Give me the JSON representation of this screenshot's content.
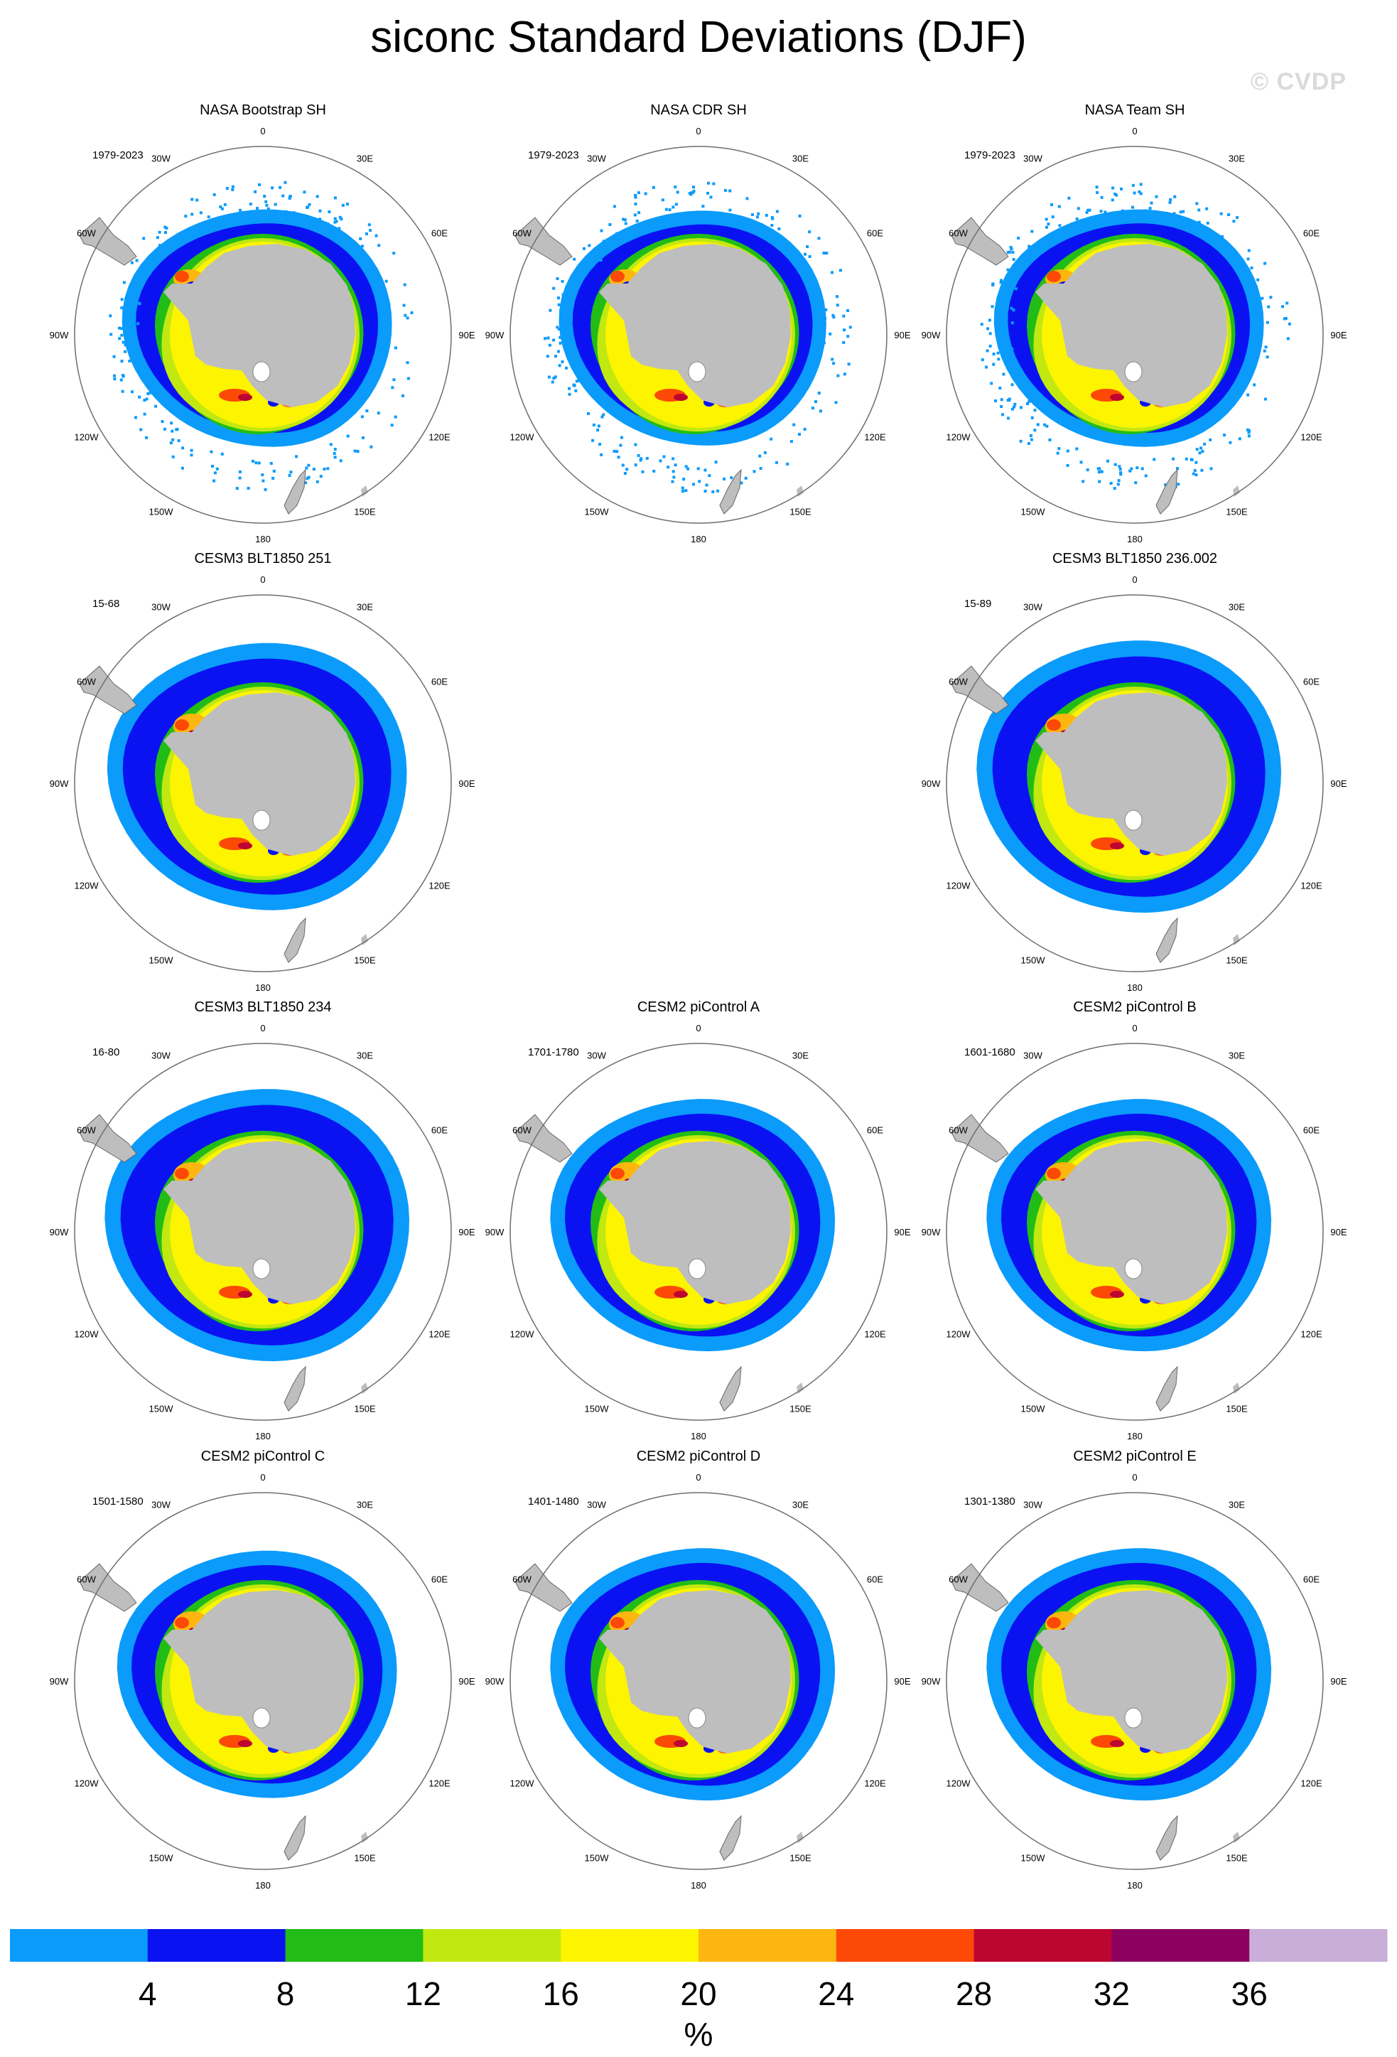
{
  "title": "siconc Standard Deviations (DJF)",
  "watermark": "© CVDP",
  "variable": "siconc",
  "season": "DJF",
  "map_projection": "south-polar-stereographic",
  "map_colors": {
    "land": "#bebebe",
    "ocean": "#ffffff",
    "frame": "#6e6e6e"
  },
  "longitude_labels": [
    "0",
    "30E",
    "60E",
    "90E",
    "120E",
    "150E",
    "180",
    "150W",
    "120W",
    "90W",
    "60W",
    "30W"
  ],
  "panels": [
    {
      "title": "NASA Bootstrap SH",
      "period": "1979-2023",
      "extent": 0.98,
      "noise": "scatter",
      "hot_spots": "strong"
    },
    {
      "title": "NASA CDR SH",
      "period": "1979-2023",
      "extent": 0.97,
      "noise": "scatter",
      "hot_spots": "strong"
    },
    {
      "title": "NASA Team SH",
      "period": "1979-2023",
      "extent": 0.98,
      "noise": "scatter",
      "hot_spots": "strong"
    },
    {
      "title": "CESM3 BLT1850 251",
      "period": "15-68",
      "extent": 1.1,
      "noise": "none",
      "hot_spots": "medium"
    },
    {
      "title": "CESM3 BLT1850 236.002",
      "period": "15-89",
      "extent": 1.12,
      "noise": "none",
      "hot_spots": "medium"
    },
    {
      "title": "CESM3 BLT1850 234",
      "period": "16-80",
      "extent": 1.12,
      "noise": "none",
      "hot_spots": "medium"
    },
    {
      "title": "CESM2 piControl A",
      "period": "1701-1780",
      "extent": 1.04,
      "noise": "none",
      "hot_spots": "medium"
    },
    {
      "title": "CESM2 piControl B",
      "period": "1601-1680",
      "extent": 1.04,
      "noise": "none",
      "hot_spots": "medium"
    },
    {
      "title": "CESM2 piControl C",
      "period": "1501-1580",
      "extent": 1.02,
      "noise": "none",
      "hot_spots": "medium"
    },
    {
      "title": "CESM2 piControl D",
      "period": "1401-1480",
      "extent": 1.04,
      "noise": "none",
      "hot_spots": "medium"
    },
    {
      "title": "CESM2 piControl E",
      "period": "1301-1380",
      "extent": 1.04,
      "noise": "none",
      "hot_spots": "medium"
    }
  ],
  "colorbar": {
    "unit": "%",
    "ticks": [
      "4",
      "8",
      "12",
      "16",
      "20",
      "24",
      "28",
      "32",
      "36"
    ],
    "colors": [
      "#0b9bfb",
      "#0a12f2",
      "#21bd16",
      "#c1e811",
      "#fdf400",
      "#fdb60f",
      "#fc4a06",
      "#bd0532",
      "#8d0060",
      "#c8aed8"
    ]
  }
}
